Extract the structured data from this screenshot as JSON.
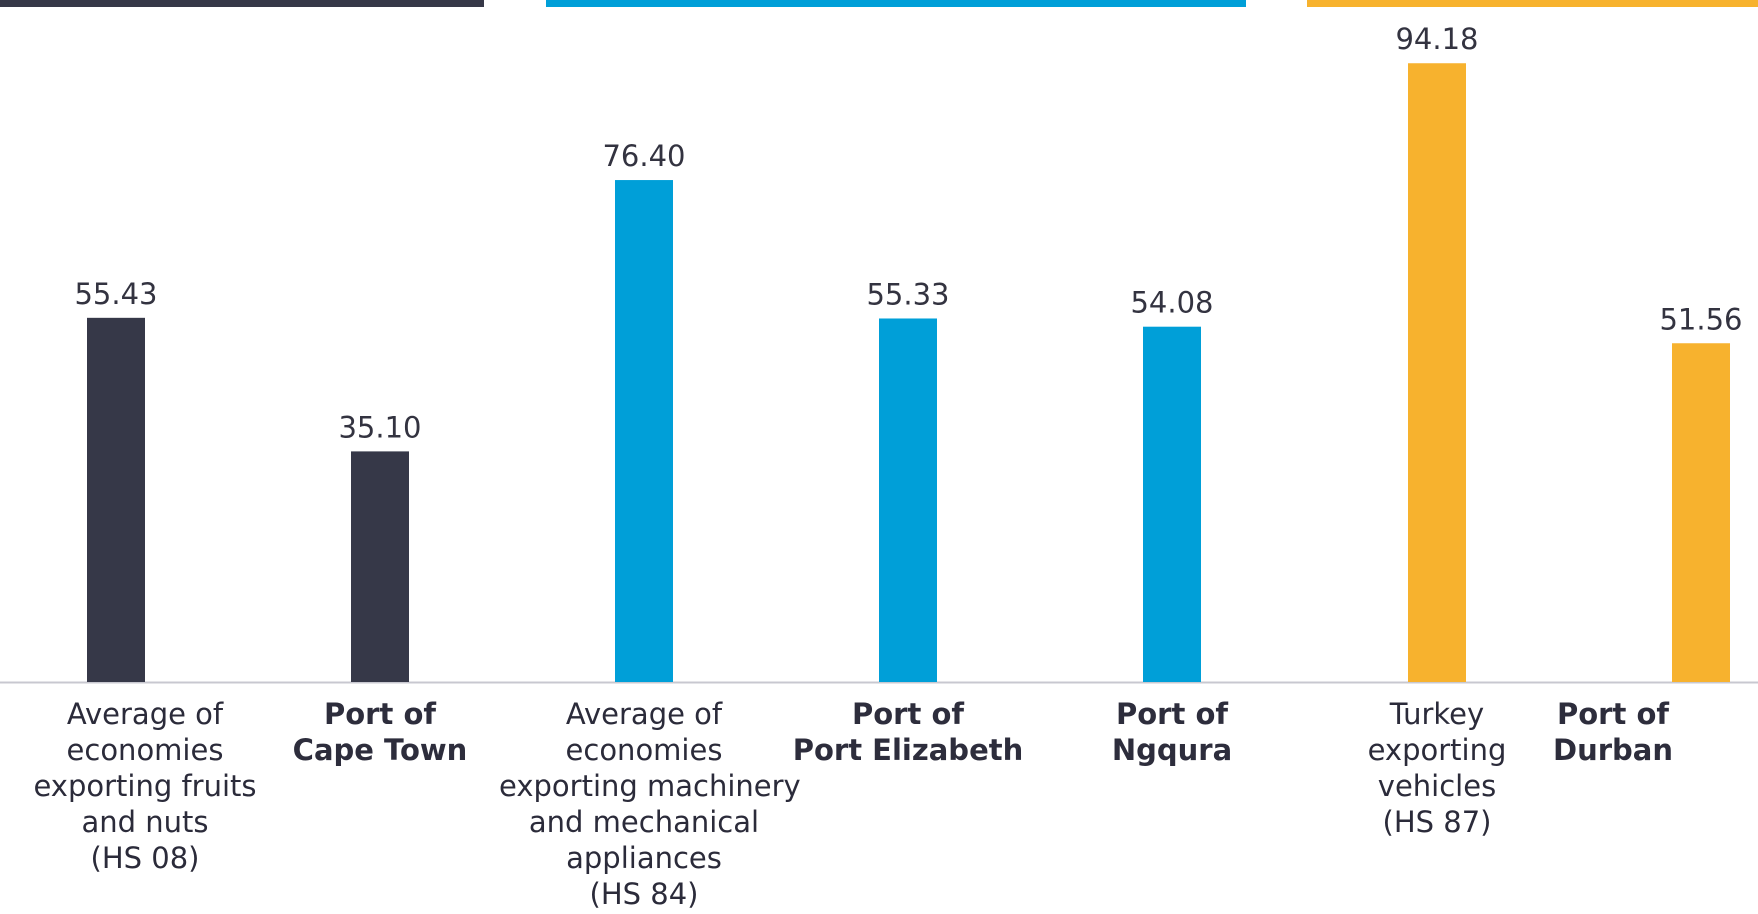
{
  "colors": {
    "group_fruits": "#363848",
    "group_machinery": "#009fd8",
    "group_vehicles": "#f7b22e",
    "axis": "#c8c8d0",
    "value_label": "#333340"
  },
  "chart_data": {
    "type": "bar",
    "title": "",
    "xlabel": "",
    "ylabel": "",
    "ylim": [
      0,
      100
    ],
    "grid": false,
    "groups": [
      {
        "color_key": "group_fruits",
        "members": [
          0,
          1
        ]
      },
      {
        "color_key": "group_machinery",
        "members": [
          2,
          3,
          4
        ]
      },
      {
        "color_key": "group_vehicles",
        "members": [
          5,
          6
        ]
      }
    ],
    "categories": [
      {
        "lines": [
          "Average of",
          "economies",
          "exporting fruits",
          "and nuts",
          "(HS 08)"
        ],
        "bold": false,
        "group": 0
      },
      {
        "lines": [
          "Port of",
          "Cape Town"
        ],
        "bold": true,
        "group": 0
      },
      {
        "lines": [
          "Average of",
          "economies",
          "exporting machinery",
          "and mechanical",
          "appliances",
          "(HS 84)"
        ],
        "bold": false,
        "group": 1
      },
      {
        "lines": [
          "Port of",
          "Port Elizabeth"
        ],
        "bold": true,
        "group": 1
      },
      {
        "lines": [
          "Port of",
          "Ngqura"
        ],
        "bold": true,
        "group": 1
      },
      {
        "lines": [
          "Turkey",
          "exporting",
          "vehicles",
          "(HS 87)"
        ],
        "bold": false,
        "group": 2
      },
      {
        "lines": [
          "Port of",
          "Durban"
        ],
        "bold": true,
        "group": 2
      }
    ],
    "values": [
      55.43,
      35.1,
      76.4,
      55.33,
      54.08,
      94.18,
      51.56
    ],
    "value_labels": [
      "55.43",
      "35.10",
      "76.40",
      "55.33",
      "54.08",
      "94.18",
      "51.56"
    ]
  }
}
